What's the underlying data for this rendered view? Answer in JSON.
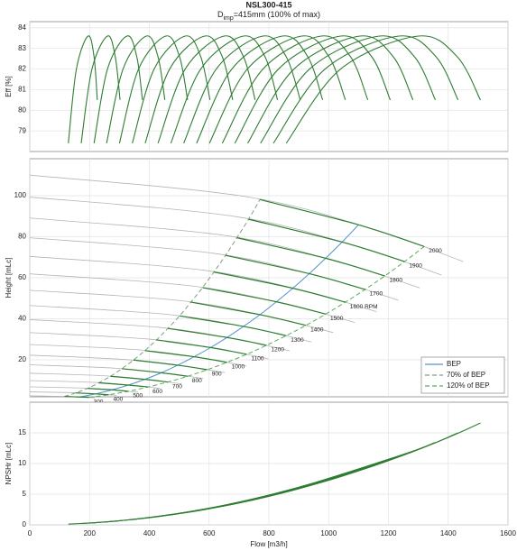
{
  "chart_data": [
    {
      "type": "line",
      "title": "NSL300-415",
      "subtitle": {
        "base": "D",
        "sub": "imp",
        "rest": "=415mm (100% of max)"
      },
      "ylabel": "Eff [%]",
      "ylim": [
        78,
        84.3
      ],
      "yticks": [
        79,
        80,
        81,
        82,
        83,
        84
      ],
      "grid": true,
      "series": [
        {
          "color": "#2e7d32",
          "x": [
            129,
            156,
            195,
            215,
            226
          ],
          "values": [
            78.4,
            82.0,
            83.6,
            82.6,
            80.5
          ]
        },
        {
          "color": "#2e7d32",
          "x": [
            172,
            208,
            260,
            286,
            302
          ],
          "values": [
            78.4,
            82.0,
            83.6,
            82.6,
            80.5
          ]
        },
        {
          "color": "#2e7d32",
          "x": [
            215,
            260,
            325,
            358,
            377
          ],
          "values": [
            78.4,
            82.0,
            83.6,
            82.6,
            80.5
          ]
        },
        {
          "color": "#2e7d32",
          "x": [
            257,
            312,
            390,
            429,
            452
          ],
          "values": [
            78.4,
            82.0,
            83.6,
            82.6,
            80.5
          ]
        },
        {
          "color": "#2e7d32",
          "x": [
            300,
            364,
            455,
            501,
            528
          ],
          "values": [
            78.4,
            82.0,
            83.6,
            82.6,
            80.5
          ]
        },
        {
          "color": "#2e7d32",
          "x": [
            343,
            416,
            520,
            572,
            603
          ],
          "values": [
            78.4,
            82.0,
            83.6,
            82.6,
            80.5
          ]
        },
        {
          "color": "#2e7d32",
          "x": [
            386,
            468,
            585,
            644,
            679
          ],
          "values": [
            78.4,
            82.0,
            83.6,
            82.6,
            80.5
          ]
        },
        {
          "color": "#2e7d32",
          "x": [
            429,
            520,
            650,
            715,
            754
          ],
          "values": [
            78.4,
            82.0,
            83.6,
            82.6,
            80.5
          ]
        },
        {
          "color": "#2e7d32",
          "x": [
            472,
            572,
            715,
            787,
            829
          ],
          "values": [
            78.4,
            82.0,
            83.6,
            82.6,
            80.5
          ]
        },
        {
          "color": "#2e7d32",
          "x": [
            515,
            624,
            780,
            858,
            905
          ],
          "values": [
            78.4,
            82.0,
            83.6,
            82.6,
            80.5
          ]
        },
        {
          "color": "#2e7d32",
          "x": [
            558,
            676,
            845,
            930,
            980
          ],
          "values": [
            78.4,
            82.0,
            83.6,
            82.6,
            80.5
          ]
        },
        {
          "color": "#2e7d32",
          "x": [
            601,
            728,
            910,
            1001,
            1056
          ],
          "values": [
            78.4,
            82.0,
            83.6,
            82.6,
            80.5
          ]
        },
        {
          "color": "#2e7d32",
          "x": [
            644,
            780,
            975,
            1073,
            1131
          ],
          "values": [
            78.4,
            82.0,
            83.6,
            82.6,
            80.5
          ]
        },
        {
          "color": "#2e7d32",
          "x": [
            686,
            832,
            1040,
            1144,
            1206
          ],
          "values": [
            78.4,
            82.0,
            83.6,
            82.6,
            80.5
          ]
        },
        {
          "color": "#2e7d32",
          "x": [
            729,
            884,
            1105,
            1216,
            1282
          ],
          "values": [
            78.4,
            82.0,
            83.6,
            82.6,
            80.5
          ]
        },
        {
          "color": "#2e7d32",
          "x": [
            772,
            936,
            1170,
            1287,
            1357
          ],
          "values": [
            78.4,
            82.0,
            83.6,
            82.6,
            80.5
          ]
        },
        {
          "color": "#2e7d32",
          "x": [
            815,
            988,
            1235,
            1359,
            1433
          ],
          "values": [
            78.4,
            82.0,
            83.6,
            82.6,
            80.5
          ]
        },
        {
          "color": "#2e7d32",
          "x": [
            858,
            1040,
            1300,
            1430,
            1508
          ],
          "values": [
            78.4,
            82.0,
            83.6,
            82.6,
            80.5
          ]
        }
      ]
    },
    {
      "type": "line",
      "ylabel": "Height [mLc]",
      "ylim": [
        2,
        118
      ],
      "yticks": [
        20,
        40,
        60,
        80,
        100
      ],
      "grid": true,
      "curve_color": "#b4b4b4",
      "operating_color": "#2e7d32",
      "legend": "lower right",
      "speed_curves": [
        {
          "label": "300",
          "x": [
            0,
            109,
            174,
            218
          ],
          "values": [
            2.5,
            2.2,
            1.9,
            1.5
          ]
        },
        {
          "label": "400",
          "x": [
            0,
            145,
            232,
            290
          ],
          "values": [
            4.4,
            4.0,
            3.3,
            2.7
          ]
        },
        {
          "label": "500",
          "x": [
            0,
            181,
            290,
            363
          ],
          "values": [
            6.9,
            6.2,
            5.2,
            4.2
          ]
        },
        {
          "label": "600",
          "x": [
            0,
            218,
            348,
            435
          ],
          "values": [
            9.9,
            9.0,
            7.5,
            6.1
          ]
        },
        {
          "label": "700",
          "x": [
            0,
            254,
            406,
            508
          ],
          "values": [
            13.5,
            12.2,
            10.2,
            8.3
          ]
        },
        {
          "label": "800",
          "x": [
            0,
            290,
            464,
            580
          ],
          "values": [
            17.6,
            15.9,
            13.3,
            10.9
          ]
        },
        {
          "label": "900",
          "x": [
            0,
            326,
            522,
            653
          ],
          "values": [
            22.3,
            20.1,
            16.8,
            13.8
          ]
        },
        {
          "label": "1000",
          "x": [
            0,
            363,
            580,
            725
          ],
          "values": [
            27.5,
            24.9,
            20.8,
            17.0
          ]
        },
        {
          "label": "1100",
          "x": [
            0,
            399,
            638,
            798
          ],
          "values": [
            33.3,
            30.1,
            25.1,
            20.5
          ]
        },
        {
          "label": "1200",
          "x": [
            0,
            435,
            696,
            870
          ],
          "values": [
            39.6,
            35.8,
            29.9,
            24.4
          ]
        },
        {
          "label": "1300",
          "x": [
            0,
            471,
            754,
            943
          ],
          "values": [
            46.5,
            42.0,
            35.1,
            28.7
          ]
        },
        {
          "label": "1400",
          "x": [
            0,
            508,
            812,
            1015
          ],
          "values": [
            53.9,
            48.8,
            40.7,
            33.3
          ]
        },
        {
          "label": "1500",
          "x": [
            0,
            544,
            870,
            1088
          ],
          "values": [
            61.9,
            56.0,
            46.7,
            38.2
          ]
        },
        {
          "label": "1600 RPM",
          "x": [
            0,
            580,
            928,
            1160
          ],
          "values": [
            70.4,
            63.7,
            53.2,
            43.5
          ]
        },
        {
          "label": "1700",
          "x": [
            0,
            616,
            986,
            1233
          ],
          "values": [
            79.5,
            71.9,
            60.0,
            49.1
          ]
        },
        {
          "label": "1800",
          "x": [
            0,
            653,
            1044,
            1305
          ],
          "values": [
            89.1,
            80.6,
            67.3,
            55.0
          ]
        },
        {
          "label": "1900",
          "x": [
            0,
            689,
            1102,
            1378
          ],
          "values": [
            99.3,
            89.8,
            75.0,
            61.3
          ]
        },
        {
          "label": "2000",
          "x": [
            0,
            725,
            1160,
            1450
          ],
          "values": [
            110,
            99.5,
            83.1,
            67.9
          ]
        }
      ],
      "series": [
        {
          "name": "BEP",
          "color": "#4f94cd",
          "style": "solid",
          "x": [
            165,
            220,
            275,
            330,
            385,
            440,
            495,
            550,
            605,
            660,
            715,
            770,
            825,
            880,
            935,
            990,
            1045,
            1100
          ],
          "values": [
            1.9,
            3.4,
            5.4,
            7.7,
            10.5,
            13.7,
            17.4,
            21.5,
            26.0,
            30.9,
            36.3,
            42.0,
            48.3,
            54.9,
            62.0,
            69.5,
            77.4,
            85.8
          ]
        },
        {
          "name": "70% of BEP",
          "color": "#7f9f7f",
          "style": "dashed",
          "x": [
            116,
            154,
            193,
            231,
            270,
            308,
            347,
            385,
            424,
            462,
            501,
            539,
            578,
            616,
            655,
            693,
            732,
            770
          ],
          "values": [
            2.2,
            3.9,
            6.1,
            8.8,
            12.0,
            15.7,
            19.9,
            24.5,
            29.7,
            35.3,
            41.4,
            48.1,
            55.2,
            62.8,
            70.9,
            79.5,
            88.5,
            98.1
          ]
        },
        {
          "name": "120% of BEP",
          "color": "#5cab5c",
          "style": "dashed",
          "x": [
            198,
            264,
            330,
            396,
            462,
            528,
            594,
            660,
            726,
            792,
            858,
            924,
            990,
            1056,
            1122,
            1188,
            1254,
            1320
          ],
          "values": [
            1.7,
            3.0,
            4.7,
            6.8,
            9.2,
            12.0,
            15.2,
            18.8,
            22.7,
            27.1,
            31.8,
            36.8,
            42.3,
            48.1,
            54.3,
            60.9,
            67.9,
            75.2
          ]
        }
      ]
    },
    {
      "type": "line",
      "ylabel": "NPSHr [mLc]",
      "xlabel": "Flow [m3/h]",
      "xlim": [
        0,
        1600
      ],
      "xticks": [
        0,
        200,
        400,
        600,
        800,
        1000,
        1200,
        1400,
        1600
      ],
      "ylim": [
        0,
        20
      ],
      "yticks": [
        0,
        5,
        10,
        15
      ],
      "grid": true,
      "series": [
        {
          "color": "#2e7d32",
          "x": [
            129,
            195,
            226
          ],
          "values": [
            0.12,
            0.28,
            0.37
          ]
        },
        {
          "color": "#2e7d32",
          "x": [
            172,
            260,
            302
          ],
          "values": [
            0.22,
            0.49,
            0.67
          ]
        },
        {
          "color": "#2e7d32",
          "x": [
            215,
            325,
            377
          ],
          "values": [
            0.34,
            0.77,
            1.04
          ]
        },
        {
          "color": "#2e7d32",
          "x": [
            257,
            390,
            452
          ],
          "values": [
            0.48,
            1.11,
            1.49
          ]
        },
        {
          "color": "#2e7d32",
          "x": [
            300,
            455,
            528
          ],
          "values": [
            0.66,
            1.51,
            2.04
          ]
        },
        {
          "color": "#2e7d32",
          "x": [
            343,
            520,
            603
          ],
          "values": [
            0.86,
            1.97,
            2.65
          ]
        },
        {
          "color": "#2e7d32",
          "x": [
            386,
            585,
            679
          ],
          "values": [
            1.09,
            2.5,
            3.37
          ]
        },
        {
          "color": "#2e7d32",
          "x": [
            429,
            650,
            754
          ],
          "values": [
            1.34,
            3.08,
            4.15
          ]
        },
        {
          "color": "#2e7d32",
          "x": [
            472,
            715,
            829
          ],
          "values": [
            1.63,
            3.73,
            5.02
          ]
        },
        {
          "color": "#2e7d32",
          "x": [
            515,
            780,
            905
          ],
          "values": [
            1.94,
            4.44,
            5.98
          ]
        },
        {
          "color": "#2e7d32",
          "x": [
            558,
            845,
            980
          ],
          "values": [
            2.27,
            5.21,
            7.01
          ]
        },
        {
          "color": "#2e7d32",
          "x": [
            601,
            910,
            1056
          ],
          "values": [
            2.64,
            6.05,
            8.14
          ]
        },
        {
          "color": "#2e7d32",
          "x": [
            644,
            975,
            1131
          ],
          "values": [
            3.03,
            6.94,
            9.34
          ]
        },
        {
          "color": "#2e7d32",
          "x": [
            686,
            1040,
            1206
          ],
          "values": [
            3.44,
            7.9,
            10.62
          ]
        },
        {
          "color": "#2e7d32",
          "x": [
            729,
            1105,
            1282
          ],
          "values": [
            3.88,
            8.91,
            12.0
          ]
        },
        {
          "color": "#2e7d32",
          "x": [
            772,
            1170,
            1357
          ],
          "values": [
            4.35,
            9.99,
            13.44
          ]
        },
        {
          "color": "#2e7d32",
          "x": [
            815,
            1235,
            1433
          ],
          "values": [
            4.85,
            11.13,
            14.99
          ]
        },
        {
          "color": "#2e7d32",
          "x": [
            858,
            1300,
            1508
          ],
          "values": [
            5.37,
            12.34,
            16.6
          ]
        }
      ]
    }
  ]
}
